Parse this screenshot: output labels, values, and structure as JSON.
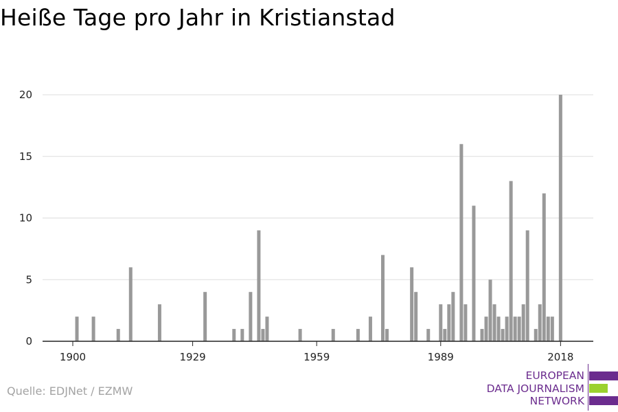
{
  "title": "Heiße Tage pro Jahr in Kristianstad",
  "source": "Quelle: EDJNet / EZMW",
  "logo": {
    "lines": [
      "EUROPEAN",
      "DATA JOURNALISM",
      "NETWORK"
    ],
    "colors": {
      "text": "#6b2c8e",
      "purple": "#6b2c8e",
      "green": "#9bd12e"
    }
  },
  "chart_data": {
    "type": "bar",
    "title": "Heiße Tage pro Jahr in Kristianstad",
    "xlabel": "",
    "ylabel": "",
    "xlim": [
      1894,
      2024
    ],
    "ylim": [
      0,
      20
    ],
    "yticks": [
      0,
      5,
      10,
      15,
      20
    ],
    "xticks": [
      1900,
      1929,
      1959,
      1989,
      2018
    ],
    "grid": true,
    "bar_color": "#999999",
    "grid_color": "#dddddd",
    "series": [
      {
        "values": [
          [
            1901,
            2
          ],
          [
            1905,
            2
          ],
          [
            1911,
            1
          ],
          [
            1914,
            6
          ],
          [
            1921,
            3
          ],
          [
            1932,
            4
          ],
          [
            1939,
            1
          ],
          [
            1941,
            1
          ],
          [
            1943,
            4
          ],
          [
            1945,
            9
          ],
          [
            1946,
            1
          ],
          [
            1947,
            2
          ],
          [
            1955,
            1
          ],
          [
            1963,
            1
          ],
          [
            1969,
            1
          ],
          [
            1972,
            2
          ],
          [
            1975,
            7
          ],
          [
            1976,
            1
          ],
          [
            1982,
            6
          ],
          [
            1983,
            4
          ],
          [
            1986,
            1
          ],
          [
            1989,
            3
          ],
          [
            1990,
            1
          ],
          [
            1991,
            3
          ],
          [
            1992,
            4
          ],
          [
            1994,
            16
          ],
          [
            1995,
            3
          ],
          [
            1997,
            11
          ],
          [
            1999,
            1
          ],
          [
            2000,
            2
          ],
          [
            2001,
            5
          ],
          [
            2002,
            3
          ],
          [
            2003,
            2
          ],
          [
            2004,
            1
          ],
          [
            2005,
            2
          ],
          [
            2006,
            13
          ],
          [
            2007,
            2
          ],
          [
            2008,
            2
          ],
          [
            2009,
            3
          ],
          [
            2010,
            9
          ],
          [
            2012,
            1
          ],
          [
            2013,
            3
          ],
          [
            2014,
            12
          ],
          [
            2015,
            2
          ],
          [
            2016,
            2
          ],
          [
            2018,
            20
          ]
        ]
      }
    ]
  }
}
